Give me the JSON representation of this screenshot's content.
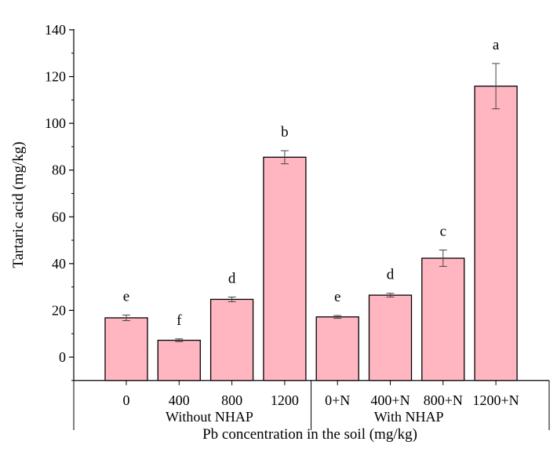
{
  "chart_data": {
    "type": "bar",
    "ylabel": "Tartaric acid (mg/kg)",
    "xlabel": "Pb concentration in the soil (mg/kg)",
    "ylim": [
      -10,
      140
    ],
    "yticks": [
      0,
      20,
      40,
      60,
      80,
      100,
      120,
      140
    ],
    "categories": [
      "0",
      "400",
      "800",
      "1200",
      "0+N",
      "400+N",
      "800+N",
      "1200+N"
    ],
    "groups": [
      {
        "label": "Without NHAP",
        "categories": [
          "0",
          "400",
          "800",
          "1200"
        ]
      },
      {
        "label": "With NHAP",
        "categories": [
          "0+N",
          "400+N",
          "800+N",
          "1200+N"
        ]
      }
    ],
    "values": [
      16.8,
      7.2,
      24.7,
      85.5,
      17.2,
      26.5,
      42.3,
      115.9
    ],
    "errors": [
      1.2,
      0.6,
      1.0,
      2.8,
      0.6,
      0.8,
      3.5,
      9.7
    ],
    "letters": [
      "e",
      "f",
      "d",
      "b",
      "e",
      "d",
      "c",
      "a"
    ],
    "bar_color": "#ffb6c1",
    "grid": false,
    "legend": "none"
  }
}
